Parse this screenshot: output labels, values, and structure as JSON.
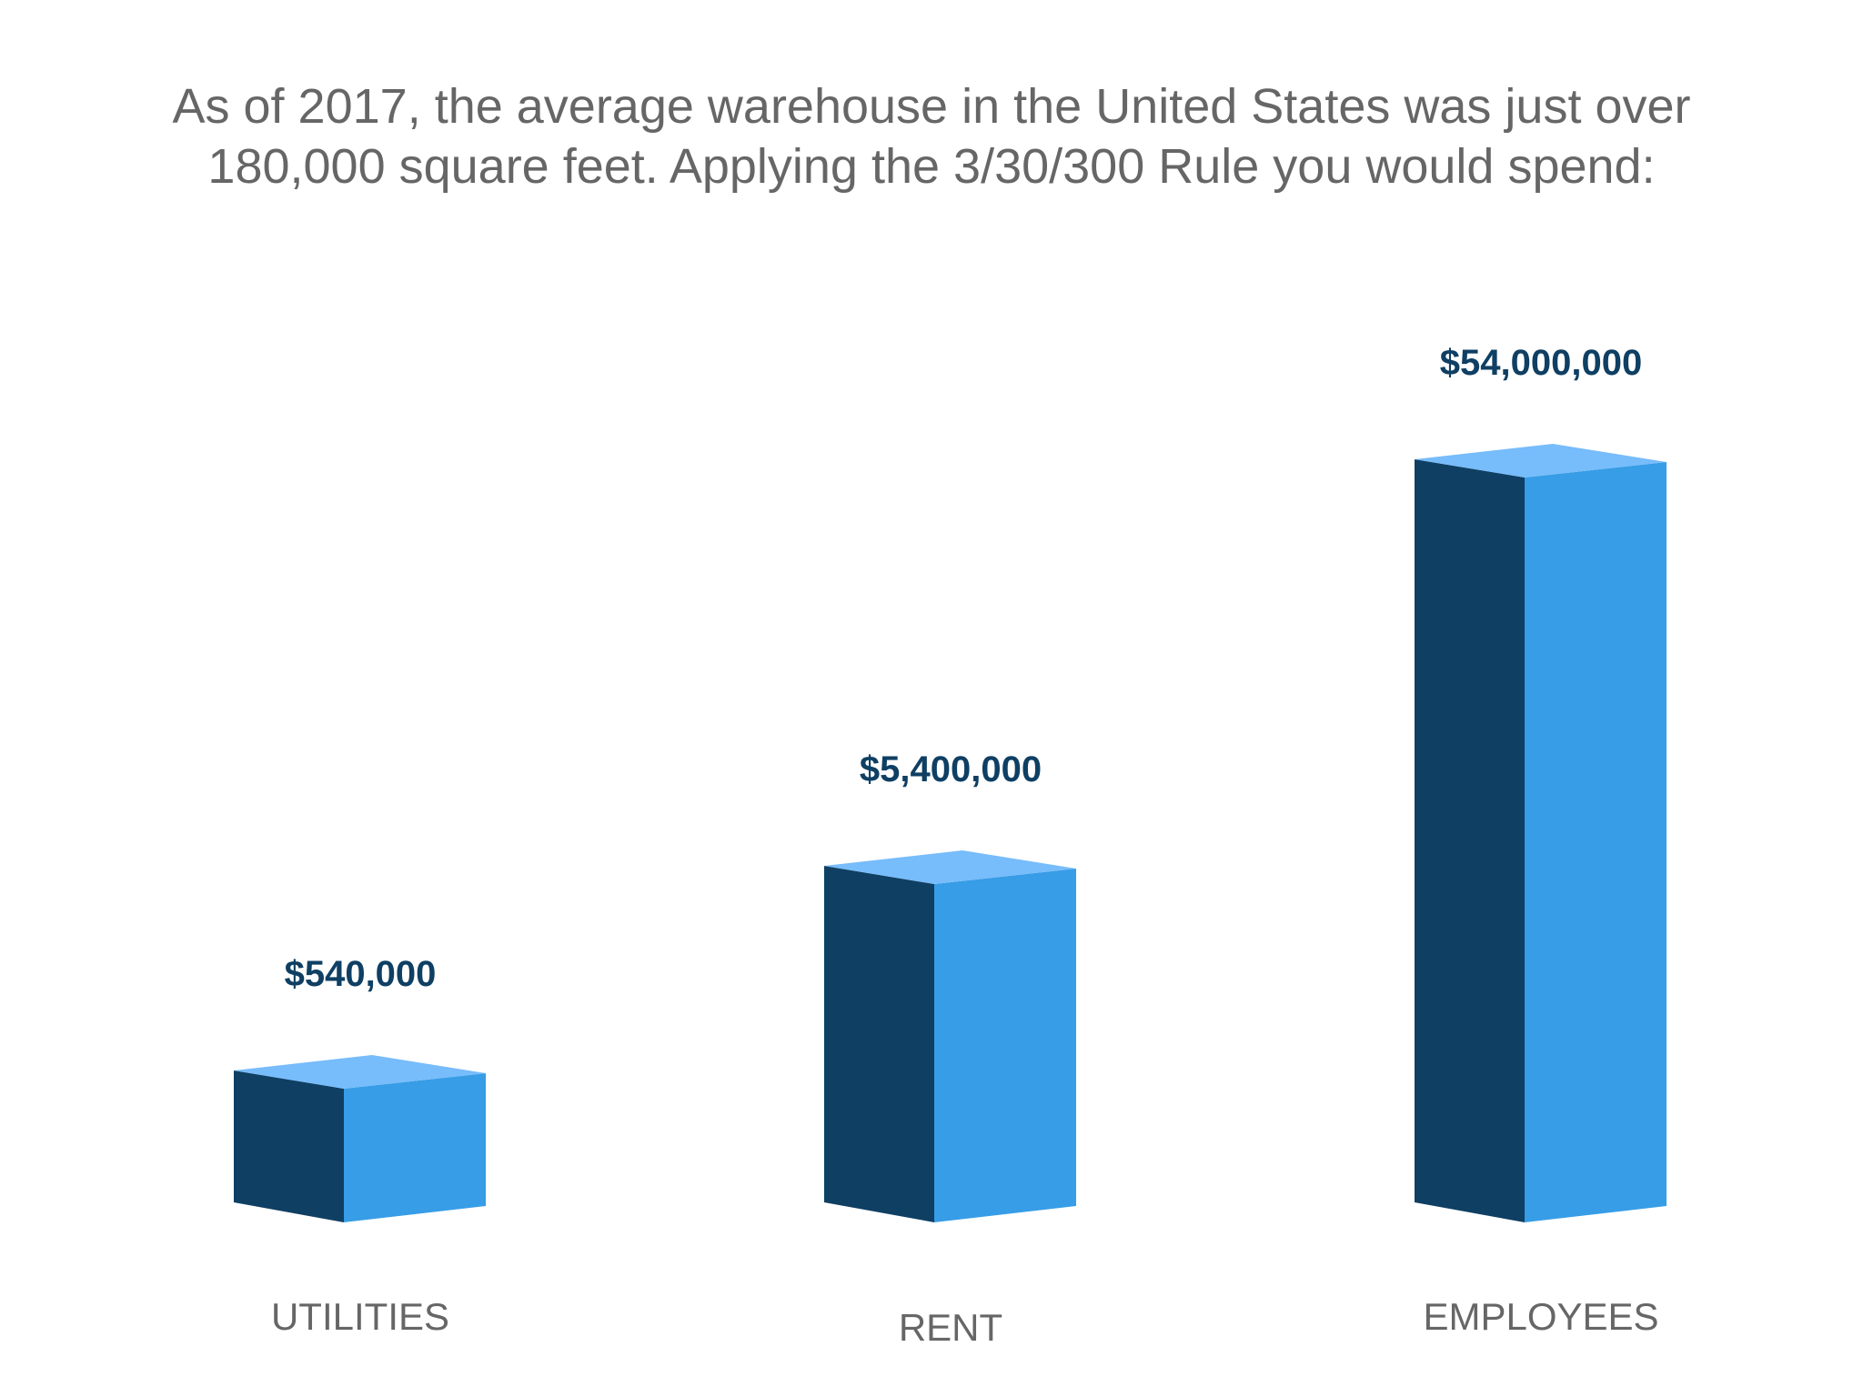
{
  "chart_data": {
    "type": "bar",
    "title_lines": [
      "As of 2017, the average warehouse in the United States was just over",
      "180,000 square feet. Applying the 3/30/300 Rule you would spend:"
    ],
    "categories": [
      "UTILITIES",
      "RENT",
      "EMPLOYEES"
    ],
    "values": [
      540000,
      5400000,
      54000000
    ],
    "data_labels": [
      "$540,000",
      "$5,400,000",
      "$54,000,000"
    ],
    "xlabel": "",
    "ylabel": "",
    "grid": false,
    "style": "3d-column",
    "colors": {
      "front_left": "#0f3f63",
      "front_right": "#379de6",
      "top": "#77bcfb",
      "label": "#0f3f63",
      "text": "#666666"
    }
  }
}
